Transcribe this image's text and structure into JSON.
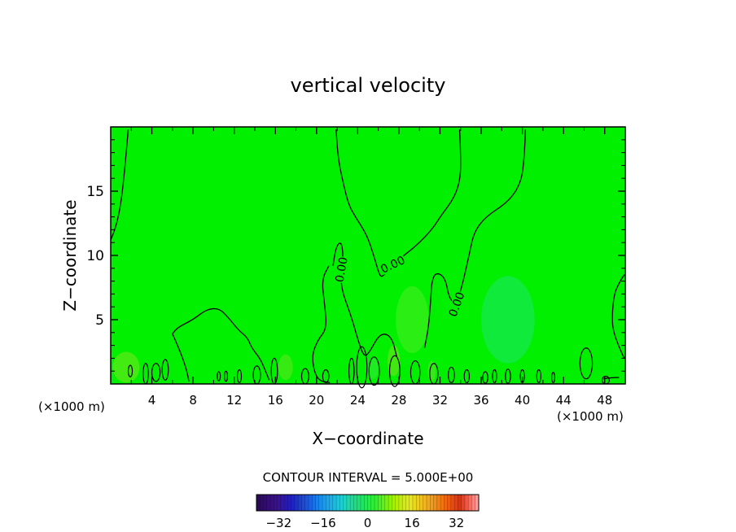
{
  "chart_data": {
    "type": "heatmap",
    "title": "vertical velocity",
    "xlabel": "X−coordinate",
    "ylabel": "Z−coordinate",
    "x_units": "(×1000 m)",
    "y_units": "(×1000 m)",
    "xlim": [
      0,
      50
    ],
    "ylim": [
      0,
      20
    ],
    "x_ticks": [
      4,
      8,
      12,
      16,
      20,
      24,
      28,
      32,
      36,
      40,
      44,
      48
    ],
    "y_ticks": [
      5,
      10,
      15
    ],
    "x_tick_labels": [
      "4",
      "8",
      "12",
      "16",
      "20",
      "24",
      "28",
      "32",
      "36",
      "40",
      "44",
      "48"
    ],
    "y_tick_labels": [
      "5",
      "10",
      "15"
    ],
    "field_fill_color": "#00f000",
    "contour_level_label": "0.00",
    "contour_interval_text": "CONTOUR INTERVAL = 5.000E+00",
    "colorbar": {
      "min": -40,
      "max": 40,
      "ticks": [
        -32,
        -16,
        0,
        16,
        32
      ],
      "tick_labels": [
        "−32",
        "−16",
        "0",
        "16",
        "32"
      ],
      "colors": [
        "#2a0c55",
        "#3a0f8a",
        "#2020c0",
        "#1a5ce0",
        "#18a0f0",
        "#20d0d0",
        "#20e070",
        "#30f030",
        "#a0f000",
        "#e8e820",
        "#f0b020",
        "#f07010",
        "#e03010",
        "#ff9a9a"
      ]
    },
    "contours": [
      {
        "label": "0.00",
        "points": [
          [
            0,
            11.2
          ],
          [
            0.5,
            12.2
          ],
          [
            1.0,
            14.0
          ],
          [
            1.4,
            17.0
          ],
          [
            1.7,
            19.8
          ]
        ]
      },
      {
        "label": "0.00",
        "points": [
          [
            21.9,
            19.8
          ],
          [
            22.1,
            17.5
          ],
          [
            22.6,
            15.6
          ],
          [
            23.1,
            14.0
          ],
          [
            23.7,
            13.1
          ],
          [
            24.9,
            11.6
          ],
          [
            25.6,
            9.9
          ],
          [
            26.1,
            8.5
          ],
          [
            26.4,
            8.3
          ],
          [
            27.4,
            9.3
          ],
          [
            28.5,
            10.0
          ],
          [
            29.9,
            10.9
          ],
          [
            31.3,
            12.1
          ],
          [
            32.1,
            13.1
          ],
          [
            33.4,
            14.5
          ],
          [
            34.0,
            16.0
          ],
          [
            34.0,
            18.0
          ],
          [
            33.9,
            19.8
          ]
        ]
      },
      {
        "label": "0.00",
        "points": [
          [
            40.3,
            19.8
          ],
          [
            40.2,
            17.7
          ],
          [
            39.9,
            15.7
          ],
          [
            38.7,
            14.2
          ],
          [
            36.4,
            13.0
          ],
          [
            35.3,
            11.8
          ],
          [
            34.9,
            10.3
          ],
          [
            34.2,
            7.8
          ],
          [
            33.6,
            6.2
          ],
          [
            32.9,
            6.6
          ],
          [
            32.5,
            8.3
          ],
          [
            31.6,
            8.7
          ],
          [
            31.2,
            8.0
          ],
          [
            31.1,
            6.6
          ],
          [
            30.9,
            4.5
          ],
          [
            30.5,
            2.8
          ]
        ]
      },
      {
        "label": "0.00",
        "points": [
          [
            21.6,
            9.2
          ],
          [
            21.9,
            10.7
          ],
          [
            22.4,
            11.1
          ],
          [
            22.6,
            10.0
          ],
          [
            22.4,
            8.9
          ],
          [
            22.4,
            7.4
          ],
          [
            23.4,
            5.2
          ],
          [
            24.0,
            3.5
          ],
          [
            24.6,
            2.1
          ],
          [
            25.1,
            2.4
          ],
          [
            26.2,
            4.0
          ],
          [
            27.3,
            3.7
          ],
          [
            27.8,
            2.1
          ]
        ]
      },
      {
        "label": "",
        "points": [
          [
            21.3,
            0.1
          ],
          [
            20.0,
            0.3
          ],
          [
            19.5,
            2.1
          ],
          [
            20.1,
            3.4
          ],
          [
            21.0,
            4.3
          ],
          [
            20.8,
            6.1
          ],
          [
            20.5,
            8.1
          ],
          [
            21.2,
            9.2
          ]
        ]
      },
      {
        "label": "",
        "points": [
          [
            6.0,
            3.9
          ],
          [
            6.5,
            4.4
          ],
          [
            8.0,
            5.0
          ],
          [
            9.3,
            5.8
          ],
          [
            10.5,
            5.9
          ],
          [
            11.4,
            5.2
          ],
          [
            12.4,
            4.2
          ],
          [
            13.3,
            3.6
          ],
          [
            13.7,
            2.8
          ],
          [
            14.5,
            2.0
          ],
          [
            15.0,
            1.1
          ],
          [
            15.4,
            0.3
          ]
        ]
      },
      {
        "label": "",
        "points": [
          [
            6.0,
            3.9
          ],
          [
            6.5,
            3.0
          ],
          [
            7.0,
            2.0
          ],
          [
            7.4,
            1.0
          ],
          [
            7.6,
            0.2
          ]
        ]
      },
      {
        "label": "",
        "points": [
          [
            49.9,
            8.5
          ],
          [
            49.5,
            8.0
          ],
          [
            48.9,
            7.0
          ],
          [
            48.7,
            5.0
          ],
          [
            48.9,
            3.9
          ],
          [
            49.6,
            2.5
          ],
          [
            49.9,
            2.0
          ]
        ]
      },
      {
        "label": "",
        "points": [
          [
            47.9,
            0.4
          ],
          [
            48.7,
            0.5
          ],
          [
            49.4,
            0.5
          ]
        ]
      }
    ],
    "closed_cells": [
      {
        "x": 1.9,
        "z": 1.0,
        "rx": 0.2,
        "rz": 0.45
      },
      {
        "x": 3.4,
        "z": 0.8,
        "rx": 0.25,
        "rz": 0.8
      },
      {
        "x": 4.4,
        "z": 0.9,
        "rx": 0.4,
        "rz": 0.7
      },
      {
        "x": 5.3,
        "z": 1.1,
        "rx": 0.3,
        "rz": 0.8
      },
      {
        "x": 10.5,
        "z": 0.6,
        "rx": 0.15,
        "rz": 0.35
      },
      {
        "x": 11.2,
        "z": 0.6,
        "rx": 0.15,
        "rz": 0.4
      },
      {
        "x": 12.5,
        "z": 0.6,
        "rx": 0.2,
        "rz": 0.5
      },
      {
        "x": 14.2,
        "z": 0.7,
        "rx": 0.35,
        "rz": 0.7
      },
      {
        "x": 15.9,
        "z": 1.0,
        "rx": 0.3,
        "rz": 1.0
      },
      {
        "x": 18.9,
        "z": 0.6,
        "rx": 0.35,
        "rz": 0.6
      },
      {
        "x": 20.9,
        "z": 0.6,
        "rx": 0.3,
        "rz": 0.5
      },
      {
        "x": 23.4,
        "z": 1.0,
        "rx": 0.25,
        "rz": 1.0
      },
      {
        "x": 24.4,
        "z": 1.3,
        "rx": 0.5,
        "rz": 1.6
      },
      {
        "x": 25.6,
        "z": 1.0,
        "rx": 0.5,
        "rz": 1.1
      },
      {
        "x": 27.6,
        "z": 1.0,
        "rx": 0.5,
        "rz": 1.2
      },
      {
        "x": 29.6,
        "z": 0.9,
        "rx": 0.45,
        "rz": 0.9
      },
      {
        "x": 31.4,
        "z": 0.8,
        "rx": 0.4,
        "rz": 0.8
      },
      {
        "x": 33.1,
        "z": 0.7,
        "rx": 0.3,
        "rz": 0.6
      },
      {
        "x": 34.6,
        "z": 0.6,
        "rx": 0.25,
        "rz": 0.5
      },
      {
        "x": 36.4,
        "z": 0.5,
        "rx": 0.25,
        "rz": 0.45
      },
      {
        "x": 37.3,
        "z": 0.6,
        "rx": 0.2,
        "rz": 0.5
      },
      {
        "x": 38.6,
        "z": 0.6,
        "rx": 0.25,
        "rz": 0.55
      },
      {
        "x": 40.0,
        "z": 0.6,
        "rx": 0.2,
        "rz": 0.5
      },
      {
        "x": 41.6,
        "z": 0.6,
        "rx": 0.2,
        "rz": 0.5
      },
      {
        "x": 43.0,
        "z": 0.5,
        "rx": 0.15,
        "rz": 0.4
      },
      {
        "x": 46.2,
        "z": 1.6,
        "rx": 0.6,
        "rz": 1.2
      },
      {
        "x": 48.1,
        "z": 0.3,
        "rx": 0.35,
        "rz": 0.3
      }
    ],
    "shading_patches": [
      {
        "x": 29.3,
        "z": 5.0,
        "rx": 1.6,
        "rz": 2.6,
        "color": "#3aed1c"
      },
      {
        "x": 38.6,
        "z": 5.0,
        "rx": 2.6,
        "rz": 3.4,
        "color": "#16e84e"
      },
      {
        "x": 1.5,
        "z": 1.3,
        "rx": 1.3,
        "rz": 1.2,
        "color": "#5aea1a"
      },
      {
        "x": 17.0,
        "z": 1.3,
        "rx": 0.7,
        "rz": 1.0,
        "color": "#4ae81a"
      },
      {
        "x": 27.5,
        "z": 1.8,
        "rx": 0.6,
        "rz": 1.2,
        "color": "#5ae618"
      },
      {
        "x": 25.5,
        "z": 1.2,
        "rx": 0.5,
        "rz": 0.8,
        "color": "#2aea30"
      },
      {
        "x": 31.2,
        "z": 1.0,
        "rx": 0.4,
        "rz": 0.8,
        "color": "#4ae620"
      }
    ]
  }
}
